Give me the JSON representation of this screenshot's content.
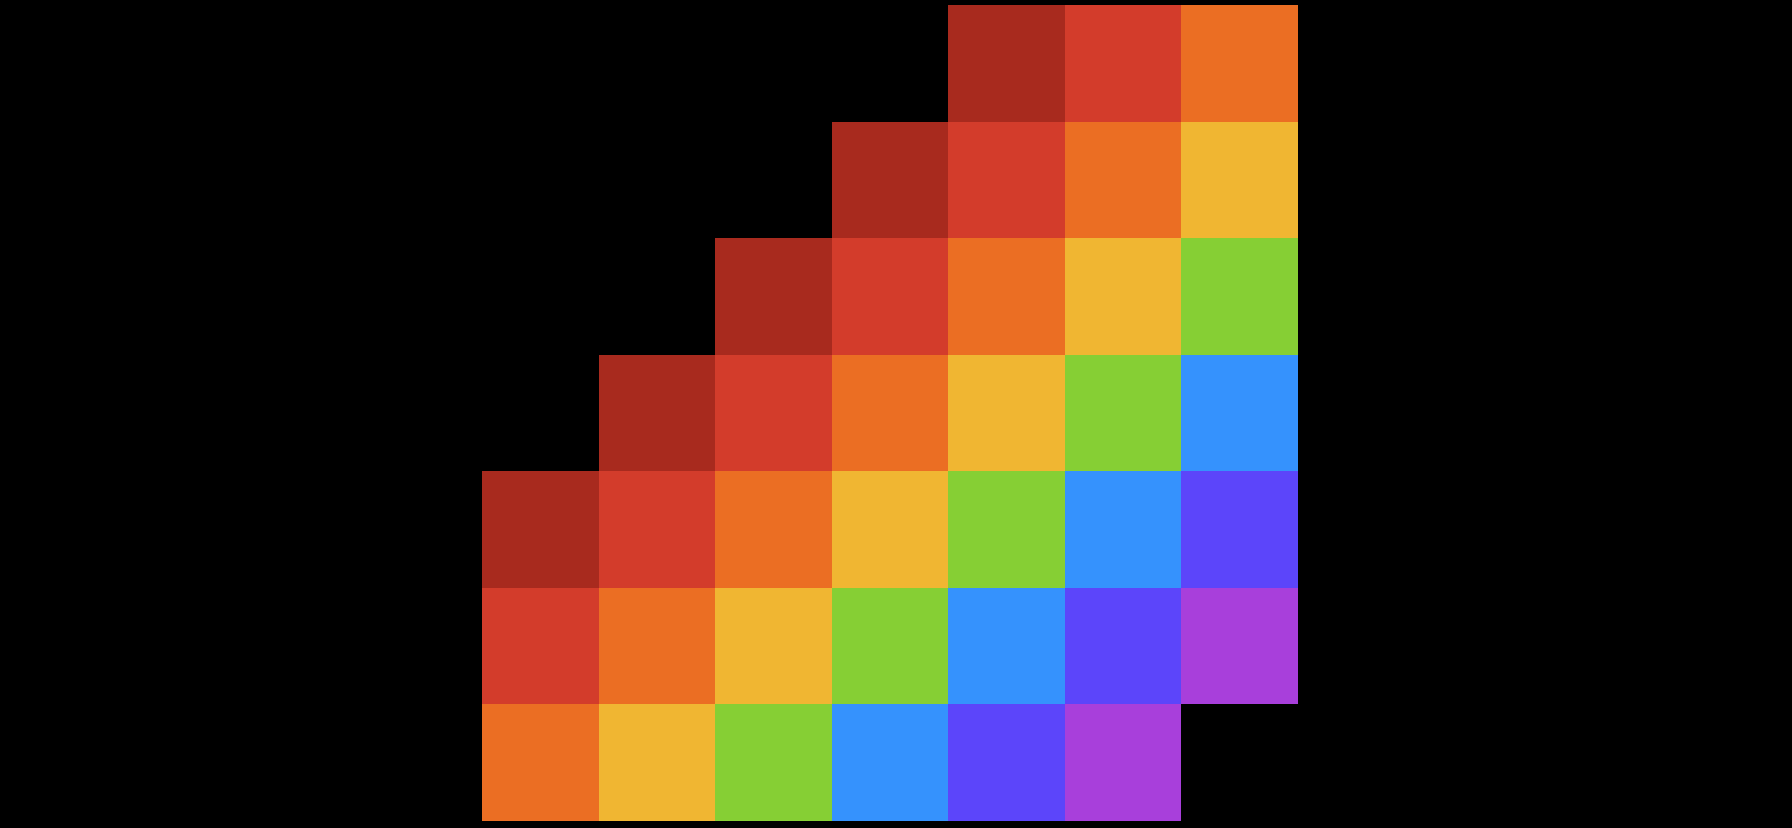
{
  "palette": {
    "dark-red": "#a82a1e",
    "red": "#d33c2b",
    "orange": "#eb6e23",
    "yellow": "#f0b632",
    "green": "#86cf34",
    "blue": "#3592fd",
    "indigo": "#5c45fa",
    "purple": "#a83fdb",
    "empty": "#000000"
  },
  "grid": [
    [
      "empty",
      "empty",
      "empty",
      "empty",
      "dark-red",
      "red",
      "orange"
    ],
    [
      "empty",
      "empty",
      "empty",
      "dark-red",
      "red",
      "orange",
      "yellow"
    ],
    [
      "empty",
      "empty",
      "dark-red",
      "red",
      "orange",
      "yellow",
      "green"
    ],
    [
      "empty",
      "dark-red",
      "red",
      "orange",
      "yellow",
      "green",
      "blue"
    ],
    [
      "dark-red",
      "red",
      "orange",
      "yellow",
      "green",
      "blue",
      "indigo"
    ],
    [
      "red",
      "orange",
      "yellow",
      "green",
      "blue",
      "indigo",
      "purple"
    ],
    [
      "orange",
      "yellow",
      "green",
      "blue",
      "indigo",
      "purple",
      "empty"
    ]
  ]
}
